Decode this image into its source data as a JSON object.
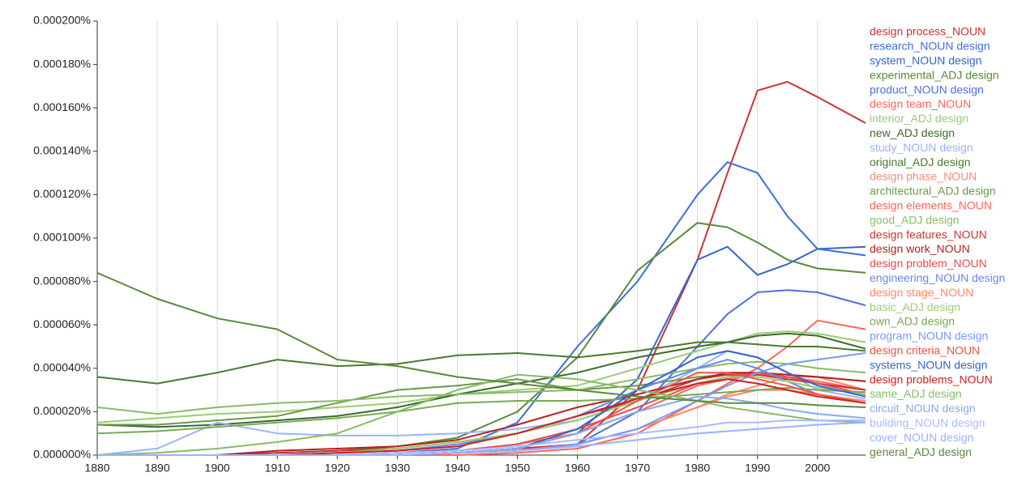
{
  "chart_data": {
    "type": "line",
    "x": [
      1880,
      1890,
      1900,
      1910,
      1920,
      1930,
      1940,
      1950,
      1960,
      1970,
      1980,
      1985,
      1990,
      1995,
      2000,
      2008
    ],
    "xlim": [
      1880,
      2008
    ],
    "xticks": [
      1880,
      1890,
      1900,
      1910,
      1920,
      1930,
      1940,
      1950,
      1960,
      1970,
      1980,
      1990,
      2000
    ],
    "ylim": [
      0,
      0.0002
    ],
    "yticks": [
      {
        "value": 0,
        "label": "0.000000%"
      },
      {
        "value": 2e-05,
        "label": "0.000020%"
      },
      {
        "value": 4e-05,
        "label": "0.000040%"
      },
      {
        "value": 6e-05,
        "label": "0.000060%"
      },
      {
        "value": 8e-05,
        "label": "0.000080%"
      },
      {
        "value": 0.0001,
        "label": "0.000100%"
      },
      {
        "value": 0.00012,
        "label": "0.000120%"
      },
      {
        "value": 0.00014,
        "label": "0.000140%"
      },
      {
        "value": 0.00016,
        "label": "0.000160%"
      },
      {
        "value": 0.00018,
        "label": "0.000180%"
      },
      {
        "value": 0.0002,
        "label": "0.000200%"
      }
    ],
    "grid": true,
    "legend": "right",
    "series": [
      {
        "name": "design process_NOUN",
        "color": "#cc3333",
        "values": [
          0,
          0,
          0,
          0,
          0,
          0,
          1e-06,
          3e-06,
          5e-06,
          3e-05,
          9e-05,
          0.00013,
          0.000168,
          0.000172,
          0.000165,
          0.000153
        ]
      },
      {
        "name": "research_NOUN design",
        "color": "#3d6fd6",
        "values": [
          0,
          0,
          0,
          0,
          0,
          1e-06,
          3e-06,
          1.5e-05,
          5e-05,
          8e-05,
          0.00012,
          0.000135,
          0.00013,
          0.00011,
          9.5e-05,
          9.2e-05
        ]
      },
      {
        "name": "system_NOUN design",
        "color": "#3366cc",
        "values": [
          0,
          0,
          0,
          0,
          0,
          0,
          1e-06,
          3e-06,
          1e-05,
          3.5e-05,
          9e-05,
          9.6e-05,
          8.3e-05,
          8.8e-05,
          9.5e-05,
          9.6e-05
        ]
      },
      {
        "name": "experimental_ADJ design",
        "color": "#5a8a3a",
        "values": [
          0,
          0,
          0,
          1e-06,
          2e-06,
          4e-06,
          8e-06,
          2e-05,
          4.5e-05,
          8.5e-05,
          0.000107,
          0.000105,
          9.8e-05,
          9e-05,
          8.6e-05,
          8.4e-05
        ]
      },
      {
        "name": "product_NOUN design",
        "color": "#4d70e0",
        "values": [
          0,
          0,
          0,
          0,
          0,
          0,
          1e-06,
          2e-06,
          5e-06,
          2e-05,
          5e-05,
          6.5e-05,
          7.5e-05,
          7.6e-05,
          7.5e-05,
          6.9e-05
        ]
      },
      {
        "name": "design team_NOUN",
        "color": "#ff6655",
        "values": [
          0,
          0,
          0,
          0,
          0,
          0,
          0,
          1e-06,
          3e-06,
          1e-05,
          2.5e-05,
          3.3e-05,
          4e-05,
          5e-05,
          6.2e-05,
          5.8e-05
        ]
      },
      {
        "name": "interior_ADJ design",
        "color": "#99cc77",
        "values": [
          1.5e-05,
          1.7e-05,
          1.9e-05,
          2e-05,
          2.2e-05,
          2.4e-05,
          2.8e-05,
          3e-05,
          3.2e-05,
          4e-05,
          4.8e-05,
          5.2e-05,
          5.6e-05,
          5.7e-05,
          5.6e-05,
          5.2e-05
        ]
      },
      {
        "name": "new_ADJ design",
        "color": "#3a6a2a",
        "values": [
          1.4e-05,
          1.3e-05,
          1.4e-05,
          1.6e-05,
          1.8e-05,
          2.2e-05,
          2.8e-05,
          3.3e-05,
          3.8e-05,
          4.5e-05,
          5e-05,
          5.2e-05,
          5.5e-05,
          5.6e-05,
          5.5e-05,
          4.9e-05
        ]
      },
      {
        "name": "study_NOUN design",
        "color": "#99b3ff",
        "values": [
          0,
          3e-06,
          1.5e-05,
          1e-05,
          9e-06,
          9e-06,
          1e-05,
          1.2e-05,
          1.6e-05,
          2.5e-05,
          4e-05,
          4.8e-05,
          4.5e-05,
          3.8e-05,
          3e-05,
          2.6e-05
        ]
      },
      {
        "name": "original_ADJ design",
        "color": "#4a7a30",
        "values": [
          3.6e-05,
          3.3e-05,
          3.8e-05,
          4.4e-05,
          4.1e-05,
          4.2e-05,
          4.6e-05,
          4.7e-05,
          4.5e-05,
          4.8e-05,
          5.2e-05,
          5.2e-05,
          5.1e-05,
          5e-05,
          5e-05,
          4.8e-05
        ]
      },
      {
        "name": "design phase_NOUN",
        "color": "#ff8877",
        "values": [
          0,
          0,
          0,
          0,
          0,
          0,
          1e-06,
          2e-06,
          5e-06,
          1.2e-05,
          2.2e-05,
          2.8e-05,
          3.2e-05,
          3.6e-05,
          3.6e-05,
          3e-05
        ]
      },
      {
        "name": "architectural_ADJ design",
        "color": "#6a9a4a",
        "values": [
          1.4e-05,
          1.4e-05,
          1.6e-05,
          1.8e-05,
          2.4e-05,
          3e-05,
          3.2e-05,
          3.5e-05,
          3e-05,
          3.2e-05,
          3.6e-05,
          3.7e-05,
          3.8e-05,
          3.7e-05,
          3.6e-05,
          3.4e-05
        ]
      },
      {
        "name": "design elements_NOUN",
        "color": "#ff6655",
        "values": [
          0,
          0,
          0,
          0,
          0,
          1e-06,
          2e-06,
          5e-06,
          1e-05,
          2e-05,
          3.2e-05,
          3.5e-05,
          3.7e-05,
          3.6e-05,
          3.4e-05,
          3e-05
        ]
      },
      {
        "name": "good_ADJ design",
        "color": "#88bb66",
        "values": [
          2.2e-05,
          1.9e-05,
          2.2e-05,
          2.4e-05,
          2.5e-05,
          2.7e-05,
          2.8e-05,
          2.9e-05,
          3e-05,
          3.5e-05,
          4e-05,
          4.2e-05,
          4.3e-05,
          4.2e-05,
          4e-05,
          3.8e-05
        ]
      },
      {
        "name": "design features_NOUN",
        "color": "#cc3333",
        "values": [
          0,
          0,
          0,
          1e-06,
          2e-06,
          3e-06,
          6e-06,
          1e-05,
          1.8e-05,
          2.5e-05,
          3.5e-05,
          3.7e-05,
          3.7e-05,
          3.5e-05,
          3.3e-05,
          3e-05
        ]
      },
      {
        "name": "design work_NOUN",
        "color": "#b22222",
        "values": [
          0,
          0,
          0,
          2e-06,
          3e-06,
          4e-06,
          7e-06,
          1.4e-05,
          2.2e-05,
          2.8e-05,
          3.5e-05,
          3.8e-05,
          3.8e-05,
          3.7e-05,
          3.6e-05,
          3.4e-05
        ]
      },
      {
        "name": "design problem_NOUN",
        "color": "#e64c4c",
        "values": [
          0,
          0,
          0,
          0,
          0,
          1e-06,
          2e-06,
          5e-06,
          1.2e-05,
          2.2e-05,
          3.3e-05,
          3.6e-05,
          3.8e-05,
          3.6e-05,
          3.3e-05,
          2.8e-05
        ]
      },
      {
        "name": "engineering_NOUN design",
        "color": "#6688ee",
        "values": [
          0,
          0,
          0,
          0,
          1e-06,
          2e-06,
          5e-06,
          1e-05,
          1.8e-05,
          3e-05,
          4e-05,
          4.4e-05,
          4e-05,
          3.4e-05,
          2.8e-05,
          2.4e-05
        ]
      },
      {
        "name": "design stage_NOUN",
        "color": "#ff8866",
        "values": [
          0,
          0,
          0,
          0,
          0,
          0,
          1e-06,
          2e-06,
          5e-06,
          1.2e-05,
          2.2e-05,
          2.7e-05,
          3e-05,
          3e-05,
          2.8e-05,
          2.5e-05
        ]
      },
      {
        "name": "basic_ADJ design",
        "color": "#99cc77",
        "values": [
          0,
          0,
          0,
          0,
          1e-06,
          3e-06,
          6e-06,
          1e-05,
          1.6e-05,
          2.5e-05,
          3.3e-05,
          3.6e-05,
          3.6e-05,
          3.4e-05,
          3.1e-05,
          2.8e-05
        ]
      },
      {
        "name": "own_ADJ design",
        "color": "#77aa55",
        "values": [
          1e-05,
          1.1e-05,
          1.3e-05,
          1.5e-05,
          1.7e-05,
          2e-05,
          2.4e-05,
          2.5e-05,
          2.5e-05,
          2.6e-05,
          2.8e-05,
          2.9e-05,
          3e-05,
          3.1e-05,
          3e-05,
          2.9e-05
        ]
      },
      {
        "name": "program_NOUN design",
        "color": "#7799ff",
        "values": [
          0,
          0,
          0,
          0,
          0,
          0,
          1e-06,
          2e-06,
          5e-06,
          1.2e-05,
          2.5e-05,
          3.2e-05,
          3.8e-05,
          4.2e-05,
          4.4e-05,
          4.7e-05
        ]
      },
      {
        "name": "design criteria_NOUN",
        "color": "#ee5544",
        "values": [
          0,
          0,
          0,
          0,
          0,
          0,
          1e-06,
          3e-06,
          1e-05,
          2.5e-05,
          3.8e-05,
          3.8e-05,
          3.5e-05,
          3.2e-05,
          2.8e-05,
          2.4e-05
        ]
      },
      {
        "name": "systems_NOUN design",
        "color": "#3366cc",
        "values": [
          0,
          0,
          0,
          0,
          0,
          0,
          1e-06,
          3e-06,
          1.2e-05,
          3e-05,
          4.5e-05,
          4.8e-05,
          4.5e-05,
          3.8e-05,
          3.2e-05,
          2.7e-05
        ]
      },
      {
        "name": "design problems_NOUN",
        "color": "#cc2222",
        "values": [
          0,
          0,
          0,
          0,
          1e-06,
          2e-06,
          4e-06,
          1e-05,
          1.8e-05,
          2.6e-05,
          3.3e-05,
          3.5e-05,
          3.3e-05,
          3e-05,
          2.7e-05,
          2.4e-05
        ]
      },
      {
        "name": "same_ADJ design",
        "color": "#88bb66",
        "values": [
          0,
          1e-06,
          3e-06,
          6e-06,
          1e-05,
          2e-05,
          3e-05,
          3.7e-05,
          3.5e-05,
          3e-05,
          2.5e-05,
          2.2e-05,
          2e-05,
          1.8e-05,
          1.6e-05,
          1.5e-05
        ]
      },
      {
        "name": "circuit_NOUN design",
        "color": "#88aaee",
        "values": [
          0,
          0,
          0,
          0,
          0,
          0,
          1e-06,
          3e-06,
          1e-05,
          2e-05,
          2.7e-05,
          2.6e-05,
          2.4e-05,
          2.1e-05,
          1.9e-05,
          1.7e-05
        ]
      },
      {
        "name": "building_NOUN design",
        "color": "#aabbff",
        "values": [
          0,
          0,
          0,
          0,
          0,
          1e-06,
          2e-06,
          4e-06,
          7e-06,
          1e-05,
          1.3e-05,
          1.5e-05,
          1.5e-05,
          1.6e-05,
          1.6e-05,
          1.6e-05
        ]
      },
      {
        "name": "cover_NOUN design",
        "color": "#99b3ff",
        "values": [
          0,
          0,
          0,
          0,
          0,
          0,
          1e-06,
          2e-06,
          4e-06,
          7e-06,
          1e-05,
          1.1e-05,
          1.2e-05,
          1.3e-05,
          1.4e-05,
          1.5e-05
        ]
      },
      {
        "name": "general_ADJ design",
        "color": "#5a8a3a",
        "values": [
          8.4e-05,
          7.2e-05,
          6.3e-05,
          5.8e-05,
          4.4e-05,
          4.1e-05,
          3.6e-05,
          3.3e-05,
          3e-05,
          2.7e-05,
          2.5e-05,
          2.4e-05,
          2.4e-05,
          2.4e-05,
          2.3e-05,
          2.2e-05
        ]
      }
    ]
  }
}
